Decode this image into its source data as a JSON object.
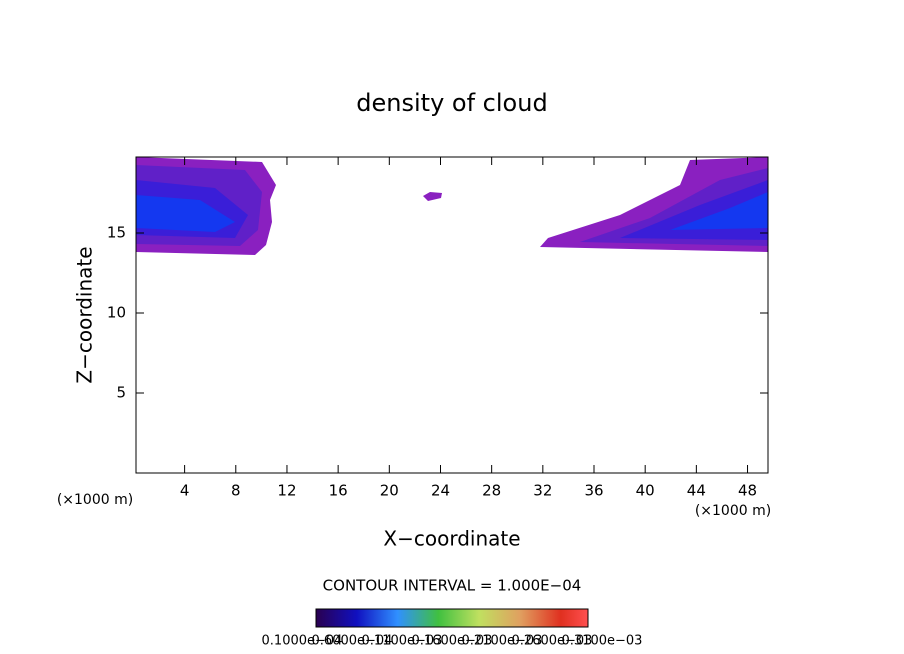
{
  "chart_data": {
    "type": "contour",
    "title": "density of cloud",
    "x_label": "X−coordinate",
    "y_label": "Z−coordinate",
    "x_unit_label": "(×1000 m)",
    "y_unit_label": "(×1000 m)",
    "xlim": [
      0.2,
      49.6
    ],
    "xticks": [
      4,
      8,
      12,
      16,
      20,
      24,
      28,
      32,
      36,
      40,
      44,
      48
    ],
    "ylim": [
      0,
      19.75
    ],
    "yticks": [
      5,
      10,
      15
    ],
    "contour_interval_label": "CONTOUR INTERVAL = 1.000E−04",
    "colorbar_labels": [
      "0.1000e−04",
      "0.6000e−04",
      "0.1100e−03",
      "0.1600e−03",
      "0.2100e−03",
      "0.2600e−03",
      "0.3100e−03"
    ]
  }
}
